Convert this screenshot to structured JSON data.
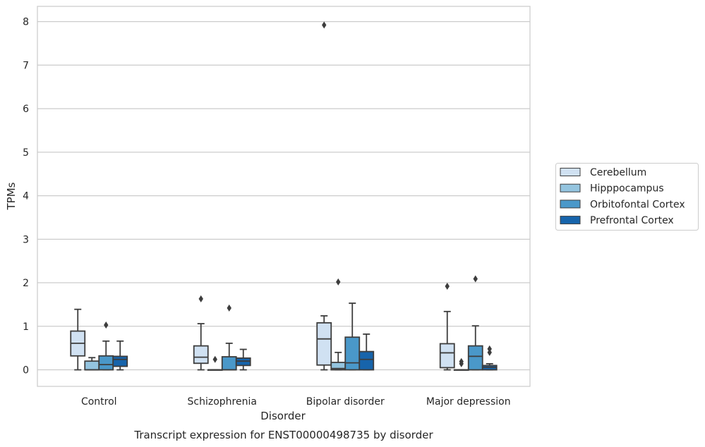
{
  "chart_data": {
    "type": "box",
    "title": "Transcript expression for ENST00000498735 by disorder",
    "xlabel": "Disorder",
    "ylabel": "TPMs",
    "ylim": [
      -0.38,
      8.35
    ],
    "yticks": [
      "0",
      "1",
      "2",
      "3",
      "4",
      "5",
      "6",
      "7",
      "8"
    ],
    "grid": true,
    "legend_position": "right",
    "categories": [
      "Control",
      "Schizophrenia",
      "Bipolar disorder",
      "Major depression"
    ],
    "series": [
      {
        "name": "Cerebellum",
        "color": "#d0e1f2",
        "boxes": [
          {
            "min": 0.0,
            "q1": 0.32,
            "median": 0.61,
            "q3": 0.89,
            "max": 1.39,
            "outliers": []
          },
          {
            "min": 0.0,
            "q1": 0.15,
            "median": 0.29,
            "q3": 0.55,
            "max": 1.06,
            "outliers": [
              1.63
            ]
          },
          {
            "min": 0.0,
            "q1": 0.11,
            "median": 0.71,
            "q3": 1.08,
            "max": 1.24,
            "outliers": [
              7.92
            ]
          },
          {
            "min": 0.0,
            "q1": 0.05,
            "median": 0.39,
            "q3": 0.6,
            "max": 1.34,
            "outliers": [
              1.92
            ]
          }
        ]
      },
      {
        "name": "Hipppocampus",
        "color": "#94c4df",
        "boxes": [
          {
            "min": 0.0,
            "q1": 0.0,
            "median": 0.0,
            "q3": 0.2,
            "max": 0.28,
            "outliers": []
          },
          {
            "min": 0.0,
            "q1": 0.0,
            "median": 0.0,
            "q3": 0.0,
            "max": 0.0,
            "outliers": [
              0.24
            ]
          },
          {
            "min": 0.0,
            "q1": 0.0,
            "median": 0.03,
            "q3": 0.17,
            "max": 0.4,
            "outliers": [
              2.02
            ]
          },
          {
            "min": 0.0,
            "q1": 0.0,
            "median": 0.0,
            "q3": 0.0,
            "max": 0.0,
            "outliers": [
              0.14,
              0.19
            ]
          }
        ]
      },
      {
        "name": "Orbitofontal Cortex",
        "color": "#4a98c9",
        "boxes": [
          {
            "min": 0.0,
            "q1": 0.0,
            "median": 0.12,
            "q3": 0.32,
            "max": 0.66,
            "outliers": [
              1.03
            ]
          },
          {
            "min": 0.0,
            "q1": 0.0,
            "median": 0.0,
            "q3": 0.3,
            "max": 0.61,
            "outliers": [
              1.42
            ]
          },
          {
            "min": 0.0,
            "q1": 0.0,
            "median": 0.16,
            "q3": 0.75,
            "max": 1.53,
            "outliers": []
          },
          {
            "min": 0.0,
            "q1": 0.0,
            "median": 0.31,
            "q3": 0.55,
            "max": 1.01,
            "outliers": [
              2.09
            ]
          }
        ]
      },
      {
        "name": "Prefrontal Cortex",
        "color": "#1764ab",
        "boxes": [
          {
            "min": 0.0,
            "q1": 0.08,
            "median": 0.24,
            "q3": 0.31,
            "max": 0.66,
            "outliers": []
          },
          {
            "min": 0.0,
            "q1": 0.1,
            "median": 0.2,
            "q3": 0.27,
            "max": 0.47,
            "outliers": []
          },
          {
            "min": 0.0,
            "q1": 0.0,
            "median": 0.24,
            "q3": 0.42,
            "max": 0.82,
            "outliers": []
          },
          {
            "min": 0.0,
            "q1": 0.0,
            "median": 0.06,
            "q3": 0.1,
            "max": 0.14,
            "outliers": [
              0.4,
              0.48
            ]
          }
        ]
      }
    ]
  }
}
